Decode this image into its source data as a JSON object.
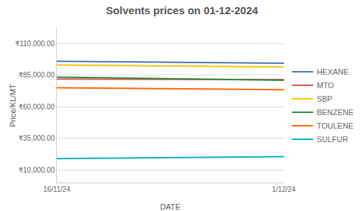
{
  "chart_data": {
    "type": "line",
    "title": "Solvents prices on 01-12-2024",
    "xlabel": "DATE",
    "ylabel": "Price/KL/MT",
    "categories": [
      "16/11/24",
      "1/12/24"
    ],
    "series": [
      {
        "name": "HEXANE",
        "color": "#4472C4",
        "values": [
          96000,
          94500
        ]
      },
      {
        "name": "MTO",
        "color": "#E05050",
        "values": [
          82000,
          81500
        ]
      },
      {
        "name": "SBP",
        "color": "#FFC000",
        "values": [
          93000,
          91500
        ]
      },
      {
        "name": "BENZENE",
        "color": "#2E8B3A",
        "values": [
          83500,
          81000
        ]
      },
      {
        "name": "TOULENE",
        "color": "#FF6600",
        "values": [
          75000,
          73500
        ]
      },
      {
        "name": "SULFUR",
        "color": "#00B0C8",
        "values": [
          19000,
          20500
        ]
      }
    ],
    "ylim": [
      0,
      122000
    ],
    "yticks": [
      {
        "value": 10000,
        "label": "₹10,000.00"
      },
      {
        "value": 35000,
        "label": "₹35,000.00"
      },
      {
        "value": 60000,
        "label": "₹60,000.00"
      },
      {
        "value": 85000,
        "label": "₹85,000.00"
      },
      {
        "value": 110000,
        "label": "₹110,000.00"
      }
    ],
    "grid": true,
    "legend": "right"
  }
}
